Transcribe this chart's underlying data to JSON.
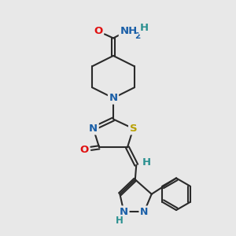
{
  "bg_color": "#e8e8e8",
  "bond_color": "#2a2a2a",
  "bond_width": 1.5,
  "atom_colors": {
    "N": "#1a5fa8",
    "O": "#e01010",
    "S": "#b8a000",
    "H": "#2a9090",
    "C": "#2a2a2a"
  },
  "font_size_atom": 9.5,
  "font_size_sub": 7.5,
  "fig_bg": "#e8e8e8"
}
